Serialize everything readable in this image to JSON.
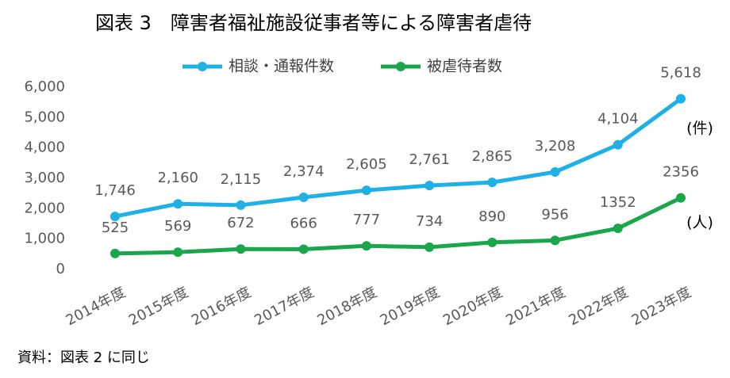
{
  "chart_data": {
    "type": "line",
    "title": "図表 3　障害者福祉施設従事者等による障害者虐待",
    "categories": [
      "2014年度",
      "2015年度",
      "2016年度",
      "2017年度",
      "2018年度",
      "2019年度",
      "2020年度",
      "2021年度",
      "2022年度",
      "2023年度"
    ],
    "series": [
      {
        "name": "相談・通報件数",
        "color": "#1fb0e6",
        "values": [
          1746,
          2160,
          2115,
          2374,
          2605,
          2761,
          2865,
          3208,
          4104,
          5618
        ],
        "value_labels": [
          "1,746",
          "2,160",
          "2,115",
          "2,374",
          "2,605",
          "2,761",
          "2,865",
          "3,208",
          "4,104",
          "5,618"
        ],
        "annotation": "(件)"
      },
      {
        "name": "被虐待者数",
        "color": "#1aa64a",
        "values": [
          525,
          569,
          672,
          666,
          777,
          734,
          890,
          956,
          1352,
          2356
        ],
        "annotation": "(人)"
      }
    ],
    "ylim": [
      0,
      6000
    ],
    "yticks": [
      0,
      {
        "value": 1000,
        "label": "1,000"
      },
      {
        "value": 2000,
        "label": "2,000"
      },
      {
        "value": 3000,
        "label": "3,000"
      },
      {
        "value": 4000,
        "label": "4,000"
      },
      {
        "value": 5000,
        "label": "5,000"
      },
      {
        "value": 6000,
        "label": "6,000"
      }
    ],
    "grid": false,
    "legend": "top",
    "source": "資料：図表 2 に同じ"
  }
}
